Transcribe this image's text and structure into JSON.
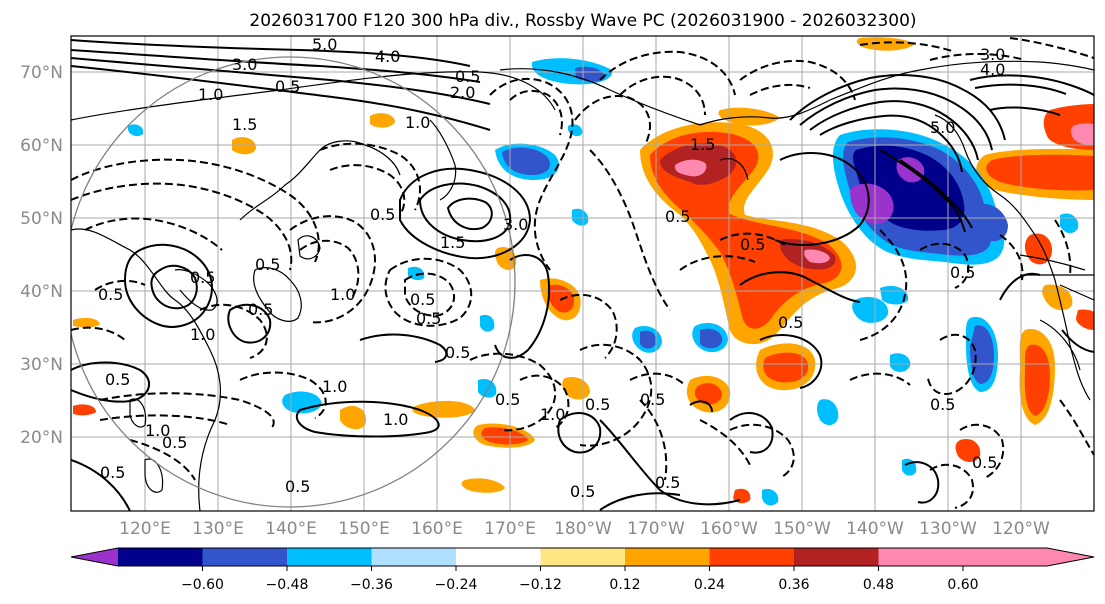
{
  "title": "2026031700 F120 300 hPa div., Rossby Wave PC (2026031900 - 2026032300)",
  "axes": {
    "lat_labels": [
      "70°N",
      "60°N",
      "50°N",
      "40°N",
      "30°N",
      "20°N"
    ],
    "lon_labels": [
      "120°E",
      "130°E",
      "140°E",
      "150°E",
      "160°E",
      "170°E",
      "180°W",
      "170°W",
      "160°W",
      "150°W",
      "140°W",
      "130°W",
      "120°W"
    ]
  },
  "colorbar": {
    "tick_labels": [
      "−0.60",
      "−0.48",
      "−0.36",
      "−0.24",
      "−0.12",
      "0.12",
      "0.24",
      "0.36",
      "0.48",
      "0.60"
    ],
    "colors": [
      "#9933cc",
      "#00008b",
      "#3355cc",
      "#00bfff",
      "#b0e0ff",
      "#ffffff",
      "#ffe680",
      "#ffa500",
      "#ff4000",
      "#b22222",
      "#ff88b0"
    ]
  },
  "contour_labels": [
    "5.0",
    "4.0",
    "3.0",
    "0.5",
    "1.0",
    "1.5",
    "2.0",
    "0.5",
    "1.0",
    "3.0",
    "1.5",
    "0.5",
    "1.0",
    "0.5",
    "0.5",
    "0.5",
    "1.0",
    "0.5",
    "0.5",
    "1.0",
    "0.5",
    "0.5",
    "0.5",
    "1.0",
    "1.0",
    "0.5",
    "0.5",
    "0.5",
    "0.5",
    "1.0",
    "0.5",
    "0.5",
    "0.5",
    "0.5",
    "0.5",
    "1.5",
    "3.0",
    "4.0",
    "5.0",
    "0.5",
    "0.5",
    "0.5",
    "0.5",
    "0.5"
  ]
}
